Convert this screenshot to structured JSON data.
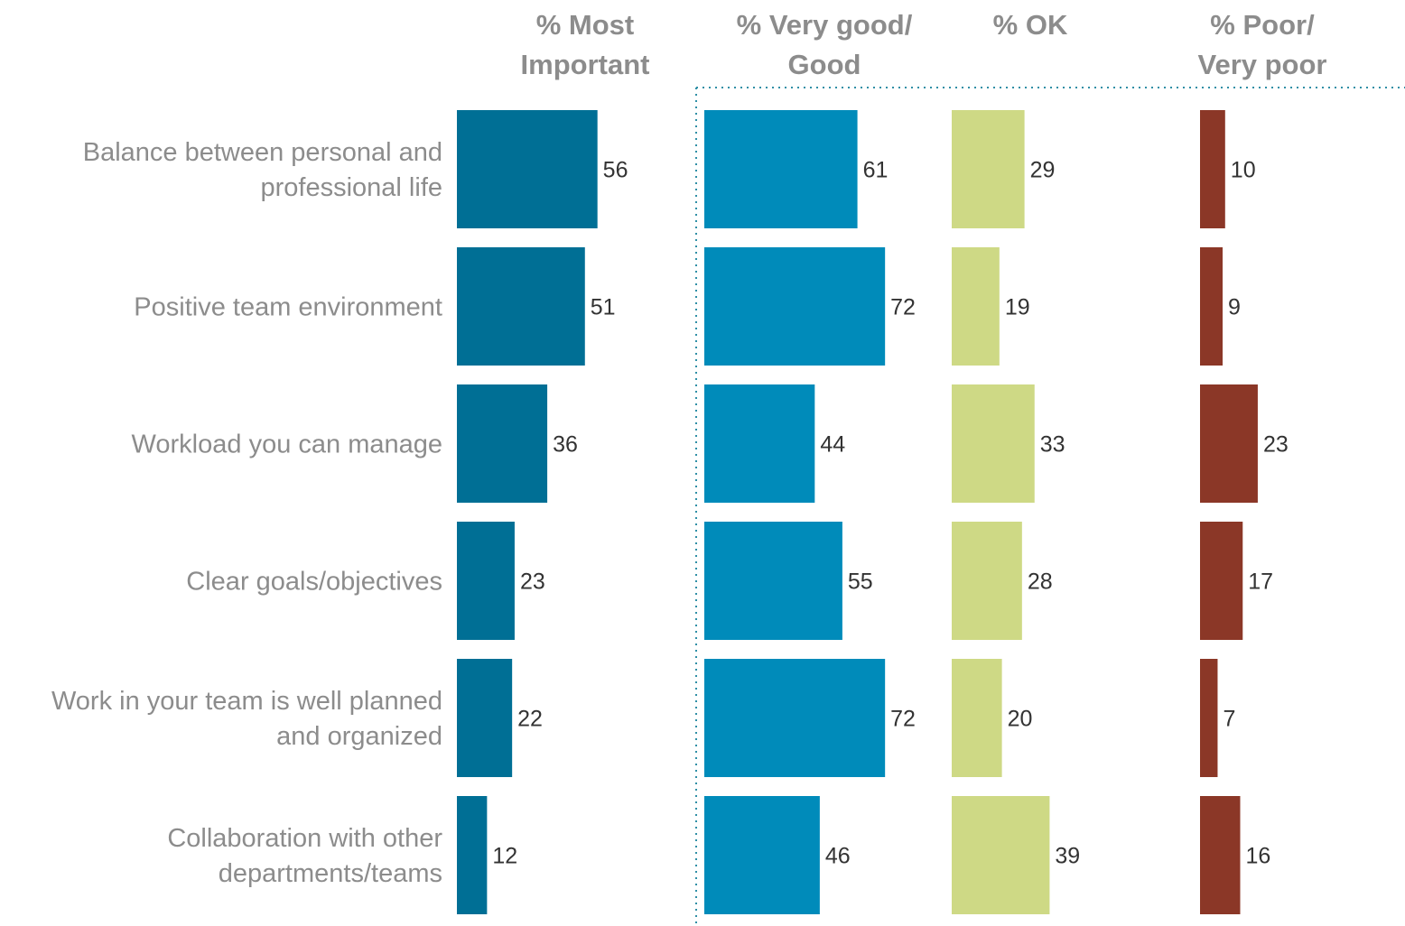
{
  "chart_data": {
    "type": "bar",
    "orientation": "horizontal",
    "layout": "small-multiples",
    "categories": [
      [
        "Balance between personal and",
        "professional life"
      ],
      [
        "Positive team environment"
      ],
      [
        "Workload you can manage"
      ],
      [
        "Clear goals/objectives"
      ],
      [
        "Work in your team is well planned",
        "and organized"
      ],
      [
        "Collaboration with other",
        "departments/teams"
      ]
    ],
    "series": [
      {
        "name": [
          "% Most",
          "Important"
        ],
        "values": [
          56,
          51,
          36,
          23,
          22,
          12
        ],
        "color": "#006f95"
      },
      {
        "name": [
          "% Very good/",
          "Good"
        ],
        "values": [
          61,
          72,
          44,
          55,
          72,
          46
        ],
        "color": "#008bba"
      },
      {
        "name": [
          "% OK"
        ],
        "values": [
          29,
          19,
          33,
          28,
          20,
          39
        ],
        "color": "#ced985"
      },
      {
        "name": [
          "% Poor/",
          "Very poor"
        ],
        "values": [
          10,
          9,
          23,
          17,
          7,
          16
        ],
        "color": "#8b3727"
      }
    ],
    "xlim": [
      0,
      100
    ],
    "grid": false,
    "legend": "none",
    "separator_color": "#2f8fa6"
  }
}
